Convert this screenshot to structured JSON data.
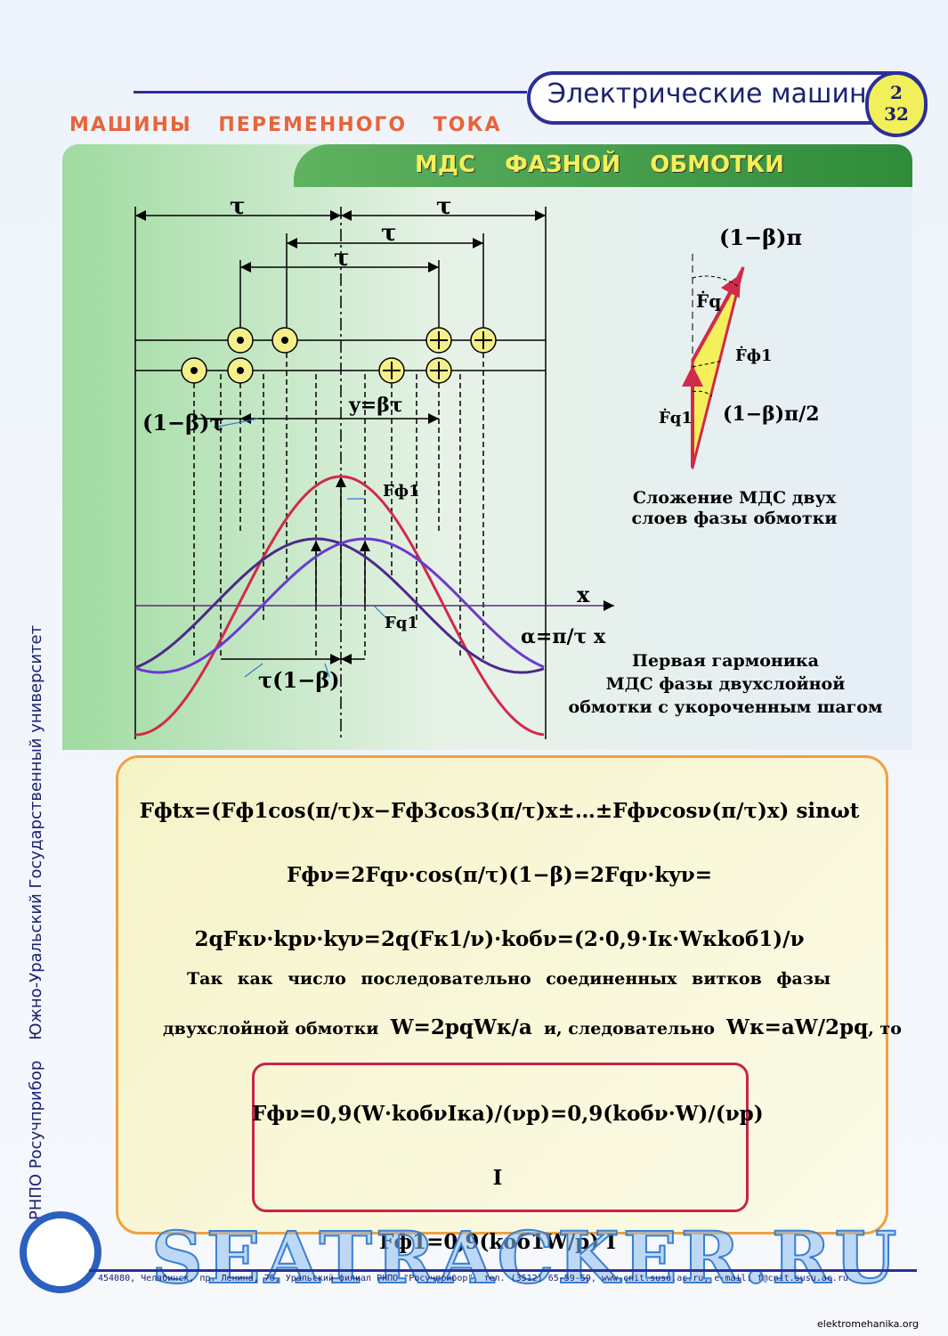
{
  "header": {
    "subject": "Электрические машины",
    "page": "2",
    "total": "32",
    "section": "МАШИНЫ ПЕРЕМЕННОГО ТОКА",
    "title": "МДС ФАЗНОЙ ОБМОТКИ"
  },
  "side_text": "РНПО Росучприбор    Южно-Уральский Государственный университет",
  "diagram": {
    "tau_labels": [
      "τ",
      "τ",
      "τ",
      "τ"
    ],
    "short_pitch": "(1−β)τ",
    "pitch": "y=βτ",
    "shift": "τ(1−β)",
    "x_axis": "x",
    "alpha": "α=π/τ x",
    "curve_total": "Fф1",
    "curve_layer": "Fq1"
  },
  "vector": {
    "angle_top": "(1−β)π",
    "fq": "Ḟq",
    "fphi": "Ḟф1",
    "fq1": "Ḟq1",
    "angle_bottom": "(1−β)π/2",
    "caption": [
      "Сложение МДС двух",
      "слоев фазы обмотки"
    ]
  },
  "harmonic_caption": [
    "Первая гармоника",
    "МДС фазы двухслойной",
    "обмотки с укороченным шагом"
  ],
  "formulas": [
    "Fфtx=(Fф1cos(π/τ)x−Fф3cos3(π/τ)x±…±Fфνcosν(π/τ)x) sinωt",
    "Fфν=2Fqν·cos(π/τ)(1−β)=2Fqν·kyν=",
    "2qFкν·kpν·kyν=2q(Fк1/ν)·kобν=(2·0,9·Iк·Wкkоб1)/ν"
  ],
  "text": {
    "line1": "Так как число последовательно соединенных витков фазы",
    "line2": "двухслойной обмотки",
    "w": "W=2pqWк/a",
    "mid": "и, следовательно",
    "wk": "Wк=aW/2pq",
    "end": ", то"
  },
  "result": [
    "Fфν=0,9(W·kобνIкa)/(νp)=0,9(kобν·W)/(νp) I",
    "Fф1=0,9(kоб1W/p) I"
  ],
  "footer": "454080, Челябинск, пр. Ленина, 76, Уральский филиал РНПО \"Росучприбор\", тел. (3512) 65-59-59, www.cnit.susu.ac.ru, e-mail: f@cnit.susu.ac.ru",
  "watermark": "SEATRACKER.RU",
  "site": "elektromehanika.org"
}
